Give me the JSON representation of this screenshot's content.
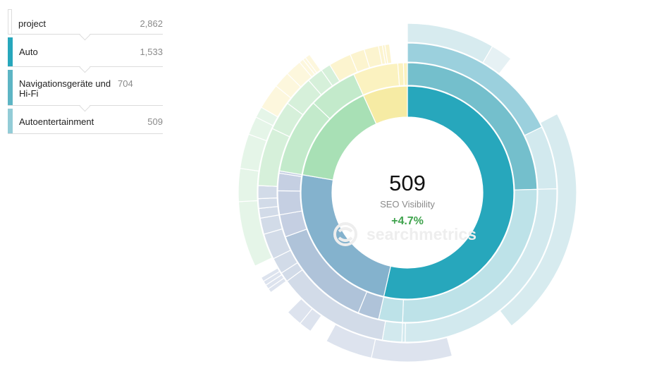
{
  "breadcrumb": [
    {
      "label": "project",
      "value": "2,862",
      "color": "#ffffff"
    },
    {
      "label": "Auto",
      "value": "1,533",
      "color": "#27a7bc"
    },
    {
      "label": "Navigationsgeräte und Hi-Fi",
      "value": "704",
      "color": "#5db5c4"
    },
    {
      "label": "Autoentertainment",
      "value": "509",
      "color": "#93ccd7"
    }
  ],
  "center": {
    "value": "509",
    "label": "SEO Visibility",
    "change": "+4.7%",
    "change_color": "#3fa34d"
  },
  "watermark": {
    "text": "searchmetrics",
    "icon": "searchmetrics-logo-icon"
  },
  "chart_data": {
    "type": "sunburst",
    "total": 2862,
    "rings": [
      {
        "level": 1,
        "segments": [
          {
            "name": "Auto",
            "value": 1533,
            "color": "#27a7bc"
          },
          {
            "name": "",
            "value": 690,
            "color": "#84b2cd"
          },
          {
            "name": "",
            "value": 445,
            "color": "#a8e0b5"
          },
          {
            "name": "",
            "value": 194,
            "color": "#f6eba4"
          }
        ]
      },
      {
        "level": 2,
        "segments": [
          {
            "name": "Navigationsgeräte und Hi-Fi",
            "value": 704,
            "color": "#74bfcc"
          },
          {
            "name": "",
            "value": 744,
            "color": "#bde2e8"
          },
          {
            "name": "",
            "value": 85,
            "color": "#bde2e8"
          },
          {
            "name": "",
            "value": 75,
            "color": "#afc3d9"
          },
          {
            "name": "",
            "value": 380,
            "color": "#afc3d9"
          },
          {
            "name": "",
            "value": 80,
            "color": "#c5cfe2"
          },
          {
            "name": "",
            "value": 85,
            "color": "#c5cfe2"
          },
          {
            "name": "",
            "value": 62,
            "color": "#c5cfe2"
          },
          {
            "name": "",
            "value": 8,
            "color": "#c5cfe2"
          },
          {
            "name": "",
            "value": 270,
            "color": "#c3eacb"
          },
          {
            "name": "",
            "value": 175,
            "color": "#c3eacb"
          },
          {
            "name": "",
            "value": 160,
            "color": "#fbf2c0"
          },
          {
            "name": "",
            "value": 20,
            "color": "#fbf2c0"
          },
          {
            "name": "",
            "value": 14,
            "color": "#fbf2c0"
          }
        ]
      },
      {
        "level": 3,
        "segments": [
          {
            "name": "Autoentertainment",
            "value": 509,
            "color": "#9bd0dd"
          },
          {
            "name": "",
            "value": 195,
            "color": "#d2e9ee"
          },
          {
            "name": "",
            "value": 734,
            "color": "#d2e9ee"
          },
          {
            "name": "",
            "value": 10,
            "color": "#d2e9ee"
          },
          {
            "name": "",
            "value": 60,
            "color": "#d2e9ee"
          },
          {
            "name": "",
            "value": 350,
            "color": "#d2dbe8"
          },
          {
            "name": "",
            "value": 30,
            "color": "#d2dbe8"
          },
          {
            "name": "",
            "value": 50,
            "color": "#d2dbe8"
          },
          {
            "name": "",
            "value": 80,
            "color": "#d2dbe8"
          },
          {
            "name": "",
            "value": 50,
            "color": "#d2dbe8"
          },
          {
            "name": "",
            "value": 30,
            "color": "#d2dbe8"
          },
          {
            "name": "",
            "value": 30,
            "color": "#d2dbe8"
          },
          {
            "name": "",
            "value": 40,
            "color": "#d2dbe8"
          },
          {
            "name": "",
            "value": 180,
            "color": "#d6f0da"
          },
          {
            "name": "",
            "value": 90,
            "color": "#d6f0da"
          },
          {
            "name": "",
            "value": 95,
            "color": "#d6f0da"
          },
          {
            "name": "",
            "value": 50,
            "color": "#d6f0da"
          },
          {
            "name": "",
            "value": 30,
            "color": "#d6f0da"
          },
          {
            "name": "",
            "value": 70,
            "color": "#fcf4cf"
          },
          {
            "name": "",
            "value": 45,
            "color": "#fcf4cf"
          },
          {
            "name": "",
            "value": 45,
            "color": "#fcf4cf"
          },
          {
            "name": "",
            "value": 12,
            "color": "#fcf4cf"
          },
          {
            "name": "",
            "value": 8,
            "color": "#fcf4cf"
          },
          {
            "name": "",
            "value": 14,
            "color": "#fcf4cf"
          }
        ]
      },
      {
        "level": 4,
        "segments": [
          {
            "name": "",
            "value": 240,
            "color": "#d7ebef"
          },
          {
            "name": "",
            "value": 60,
            "color": "#e6f1f4"
          },
          {
            "name": "",
            "value": 195,
            "color": "#ffffff"
          },
          {
            "name": "",
            "value": 634,
            "color": "#d7ebef"
          },
          {
            "name": "",
            "value": 100,
            "color": "#ffffff"
          },
          {
            "name": "",
            "value": 80,
            "color": "#ffffff"
          },
          {
            "name": "",
            "value": 220,
            "color": "#dde3ee"
          },
          {
            "name": "",
            "value": 130,
            "color": "#dde3ee"
          },
          {
            "name": "",
            "value": 50,
            "color": "#ffffff"
          },
          {
            "name": "",
            "value": 35,
            "color": "#dde3ee"
          },
          {
            "name": "",
            "value": 45,
            "color": "#dde3ee"
          },
          {
            "name": "",
            "value": 70,
            "color": "#ffffff"
          },
          {
            "name": "",
            "value": 12,
            "color": "#dde3ee"
          },
          {
            "name": "",
            "value": 12,
            "color": "#dde3ee"
          },
          {
            "name": "",
            "value": 12,
            "color": "#dde3ee"
          },
          {
            "name": "",
            "value": 12,
            "color": "#dde3ee"
          },
          {
            "name": "",
            "value": 35,
            "color": "#ffffff"
          },
          {
            "name": "",
            "value": 180,
            "color": "#e5f5e8"
          },
          {
            "name": "",
            "value": 90,
            "color": "#e5f5e8"
          },
          {
            "name": "",
            "value": 95,
            "color": "#e5f5e8"
          },
          {
            "name": "",
            "value": 50,
            "color": "#e5f5e8"
          },
          {
            "name": "",
            "value": 30,
            "color": "#e5f5e8"
          },
          {
            "name": "",
            "value": 70,
            "color": "#fdf7dd"
          },
          {
            "name": "",
            "value": 45,
            "color": "#fdf7dd"
          },
          {
            "name": "",
            "value": 45,
            "color": "#fdf7dd"
          },
          {
            "name": "",
            "value": 12,
            "color": "#fdf7dd"
          },
          {
            "name": "",
            "value": 8,
            "color": "#fdf7dd"
          },
          {
            "name": "",
            "value": 14,
            "color": "#fdf7dd"
          }
        ]
      }
    ]
  }
}
